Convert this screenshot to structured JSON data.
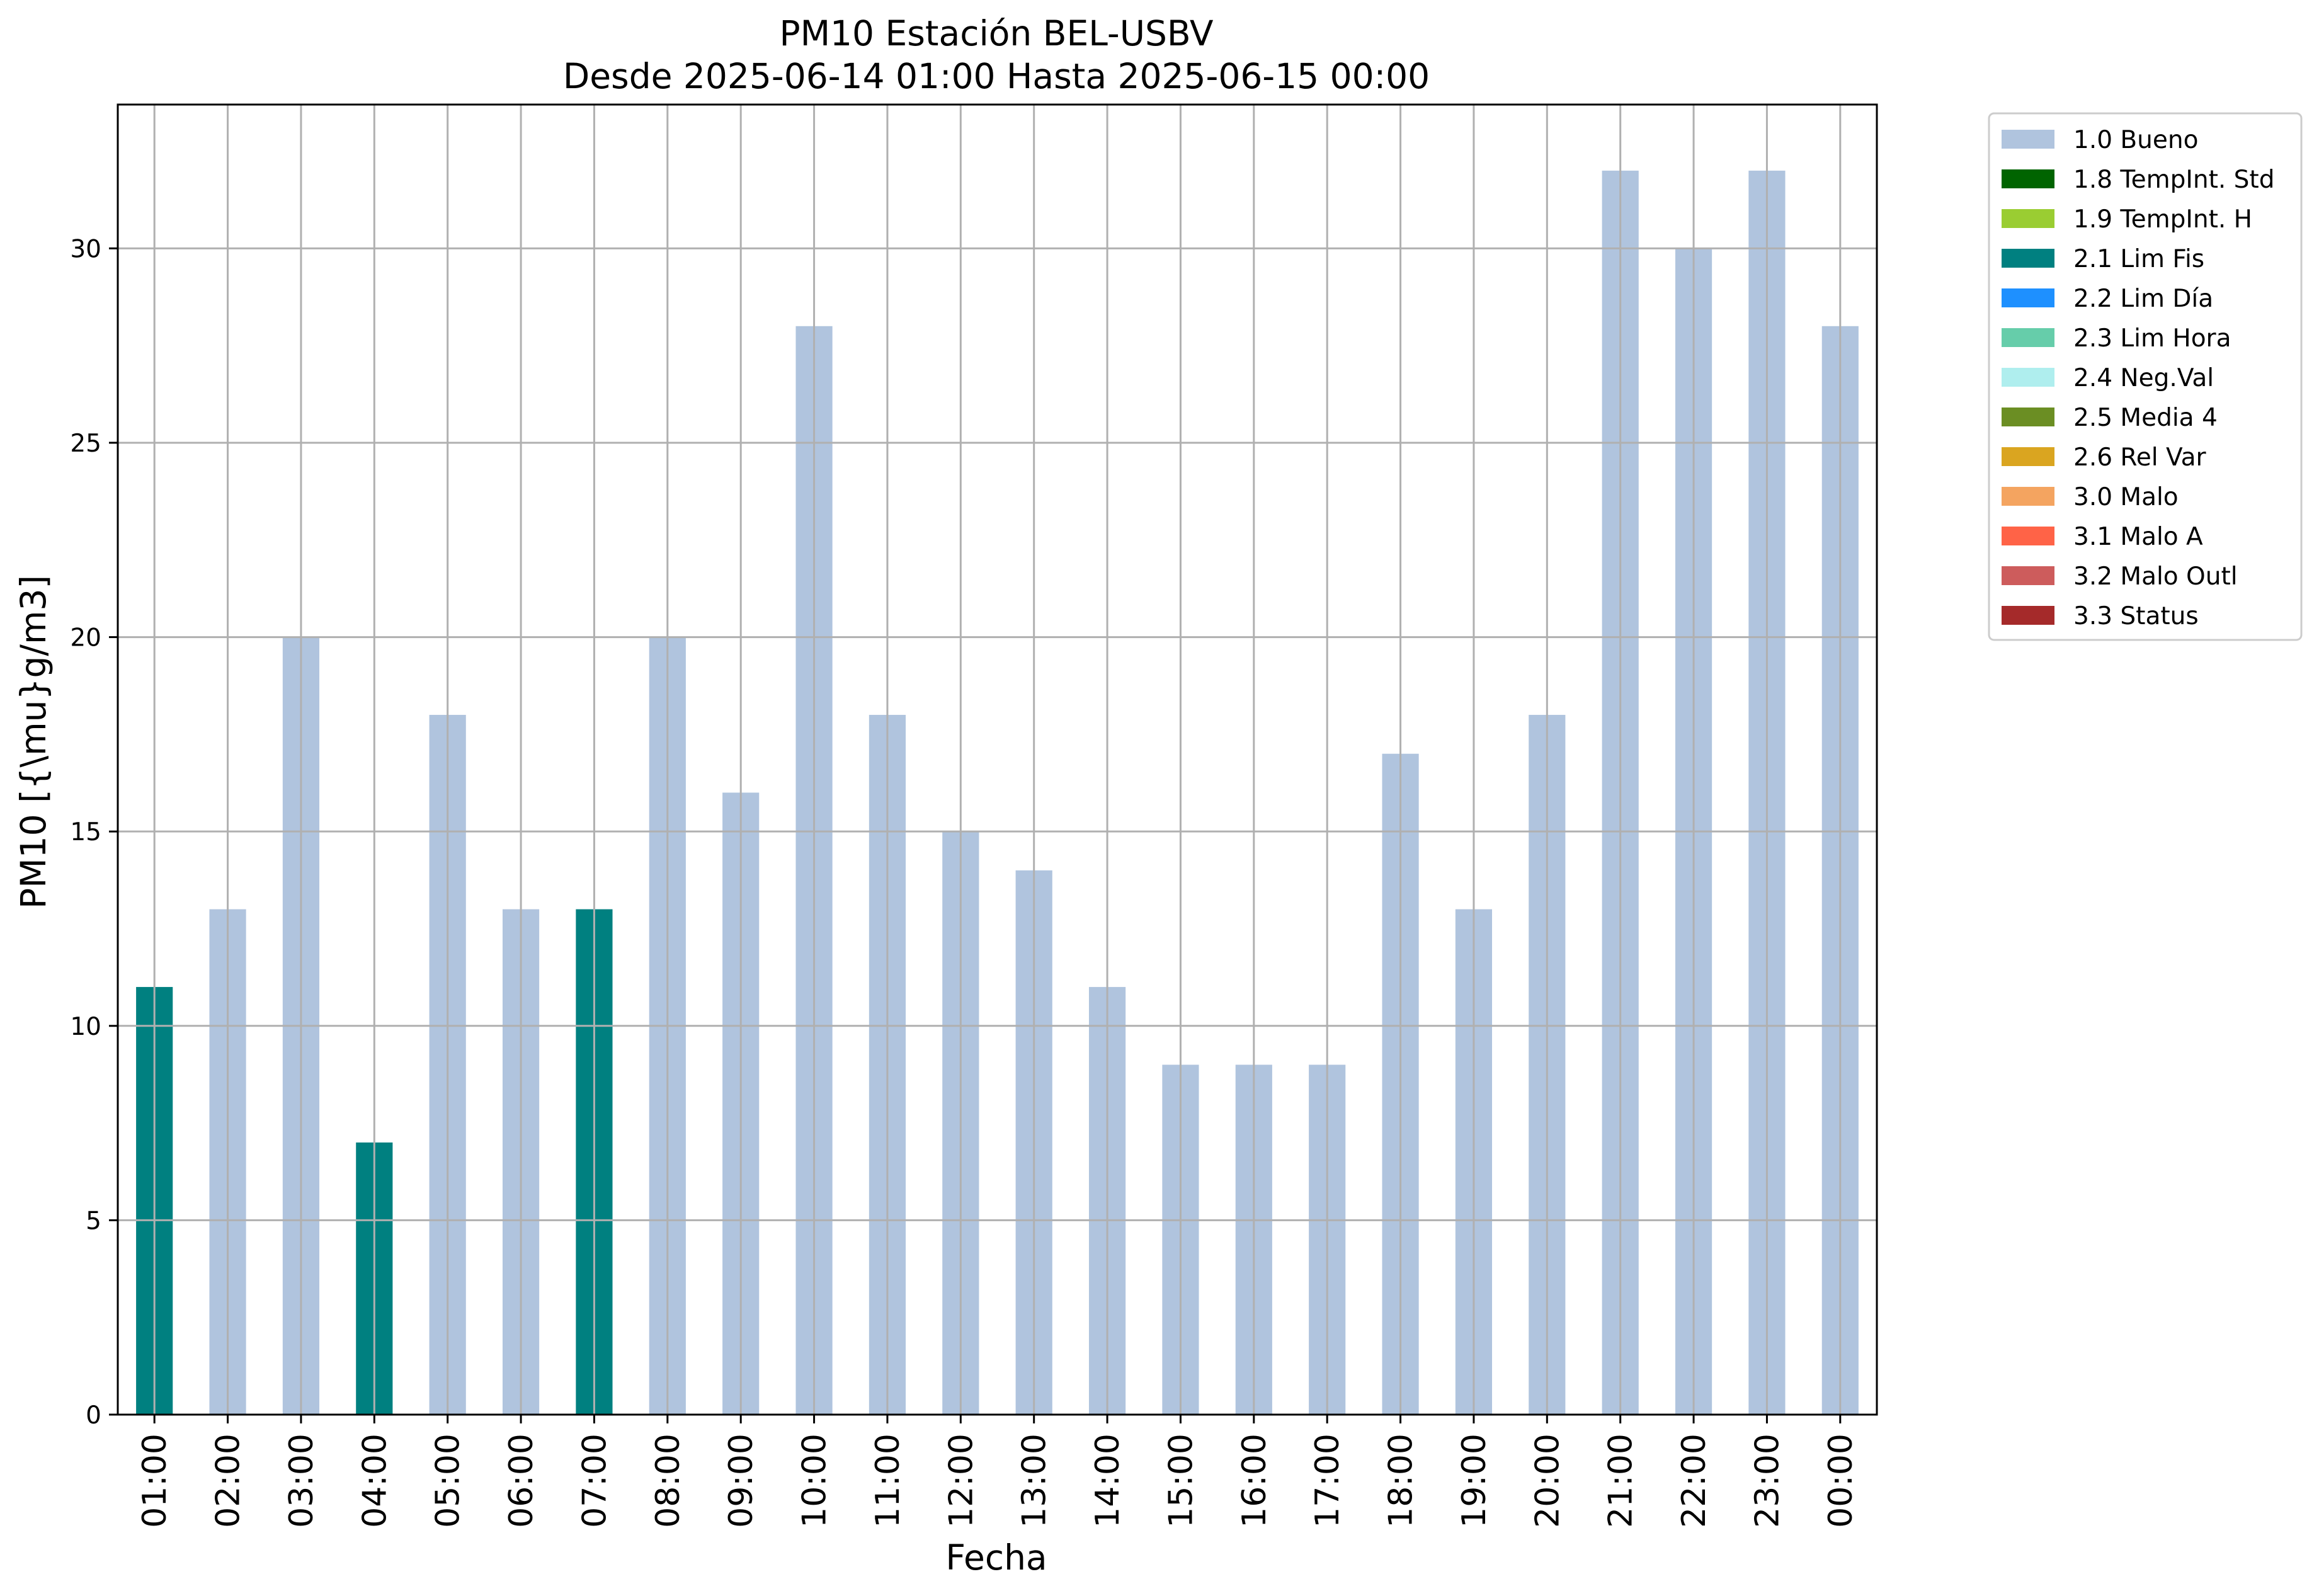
{
  "chart_data": {
    "type": "bar",
    "title": "PM10 Estación BEL-USBV",
    "subtitle": "Desde 2025-06-14 01:00 Hasta 2025-06-15 00:00",
    "xlabel": "Fecha",
    "ylabel": "PM10 [{\\mu}g/m3]",
    "ylim": [
      0,
      33.7
    ],
    "yticks": [
      0,
      5,
      10,
      15,
      20,
      25,
      30
    ],
    "grid": true,
    "legend_position": "outside-top-right",
    "categories": [
      "01:00",
      "02:00",
      "03:00",
      "04:00",
      "05:00",
      "06:00",
      "07:00",
      "08:00",
      "09:00",
      "10:00",
      "11:00",
      "12:00",
      "13:00",
      "14:00",
      "15:00",
      "16:00",
      "17:00",
      "18:00",
      "19:00",
      "20:00",
      "21:00",
      "22:00",
      "23:00",
      "00:00"
    ],
    "values": [
      11,
      13,
      20,
      7,
      18,
      13,
      13,
      20,
      16,
      28,
      18,
      15,
      14,
      11,
      9,
      9,
      9,
      17,
      13,
      18,
      32,
      30,
      32,
      28
    ],
    "flags": [
      "2.1 Lim Fis",
      "1.0 Bueno",
      "1.0 Bueno",
      "2.1 Lim Fis",
      "1.0 Bueno",
      "1.0 Bueno",
      "2.1 Lim Fis",
      "1.0 Bueno",
      "1.0 Bueno",
      "1.0 Bueno",
      "1.0 Bueno",
      "1.0 Bueno",
      "1.0 Bueno",
      "1.0 Bueno",
      "1.0 Bueno",
      "1.0 Bueno",
      "1.0 Bueno",
      "1.0 Bueno",
      "1.0 Bueno",
      "1.0 Bueno",
      "1.0 Bueno",
      "1.0 Bueno",
      "1.0 Bueno",
      "1.0 Bueno"
    ],
    "legend": [
      {
        "label": "1.0 Bueno",
        "color": "#b0c4de"
      },
      {
        "label": "1.8 TempInt. Std",
        "color": "#006400"
      },
      {
        "label": "1.9 TempInt. H",
        "color": "#9acd32"
      },
      {
        "label": "2.1 Lim Fis",
        "color": "#008080"
      },
      {
        "label": "2.2 Lim Día",
        "color": "#1e90ff"
      },
      {
        "label": "2.3 Lim Hora",
        "color": "#66cdaa"
      },
      {
        "label": "2.4 Neg.Val",
        "color": "#afeeee"
      },
      {
        "label": "2.5 Media 4",
        "color": "#6b8e23"
      },
      {
        "label": "2.6 Rel Var",
        "color": "#daa520"
      },
      {
        "label": "3.0 Malo",
        "color": "#f4a460"
      },
      {
        "label": "3.1 Malo A",
        "color": "#ff6347"
      },
      {
        "label": "3.2 Malo Outl",
        "color": "#cd5c5c"
      },
      {
        "label": "3.3 Status",
        "color": "#a52a2a"
      }
    ]
  }
}
